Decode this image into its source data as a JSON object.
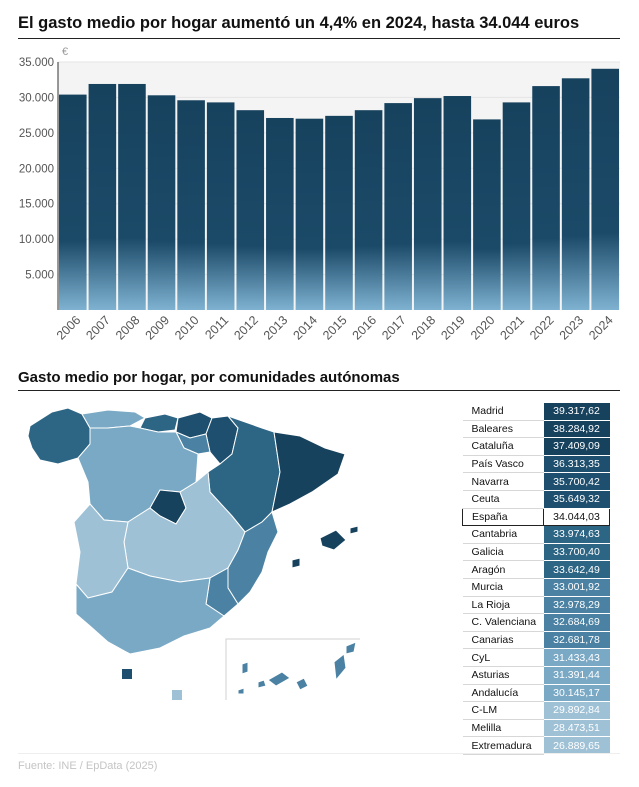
{
  "title": "El gasto medio por hogar aumentó un 4,4% en 2024, hasta 34.044 euros",
  "subtitle": "Gasto medio por hogar, por comunidades autónomas",
  "source": "Fuente: INE / EpData (2025)",
  "colors": {
    "bar_top": "#17425e",
    "bar_bottom": "#7fb2d1",
    "grid": "#e4e4e4",
    "plot_bg": "#f4f4f4",
    "scale": [
      "#17425e",
      "#1f4f6e",
      "#2d6584",
      "#4b82a3",
      "#7aa9c5",
      "#9fc1d6"
    ]
  },
  "chart_data": {
    "type": "bar",
    "title": "El gasto medio por hogar aumentó un 4,4% en 2024, hasta 34.044 euros",
    "ylabel": "€",
    "xlabel": "",
    "ylim": [
      0,
      35000
    ],
    "yticks": [
      5000,
      10000,
      15000,
      20000,
      25000,
      30000,
      35000
    ],
    "ytick_labels": [
      "5.000",
      "10.000",
      "15.000",
      "20.000",
      "25.000",
      "30.000",
      "35.000"
    ],
    "categories": [
      "2006",
      "2007",
      "2008",
      "2009",
      "2010",
      "2011",
      "2012",
      "2013",
      "2014",
      "2015",
      "2016",
      "2017",
      "2018",
      "2019",
      "2020",
      "2021",
      "2022",
      "2023",
      "2024"
    ],
    "values": [
      30400,
      31900,
      31900,
      30300,
      29600,
      29300,
      28200,
      27100,
      27000,
      27400,
      28200,
      29200,
      29900,
      30200,
      26900,
      29300,
      31600,
      32700,
      34044
    ],
    "grid": true
  },
  "regions_table": [
    {
      "name": "Madrid",
      "value": "39.317,62",
      "level": 0
    },
    {
      "name": "Baleares",
      "value": "38.284,92",
      "level": 0
    },
    {
      "name": "Cataluña",
      "value": "37.409,09",
      "level": 0
    },
    {
      "name": "País Vasco",
      "value": "36.313,35",
      "level": 1
    },
    {
      "name": "Navarra",
      "value": "35.700,42",
      "level": 1
    },
    {
      "name": "Ceuta",
      "value": "35.649,32",
      "level": 1
    },
    {
      "name": "España",
      "value": "34.044,03",
      "level": 2,
      "highlight": true
    },
    {
      "name": "Cantabria",
      "value": "33.974,63",
      "level": 2
    },
    {
      "name": "Galicia",
      "value": "33.700,40",
      "level": 2
    },
    {
      "name": "Aragón",
      "value": "33.642,49",
      "level": 2
    },
    {
      "name": "Murcia",
      "value": "33.001,92",
      "level": 3
    },
    {
      "name": "La Rioja",
      "value": "32.978,29",
      "level": 3
    },
    {
      "name": "C. Valenciana",
      "value": "32.684,69",
      "level": 3
    },
    {
      "name": "Canarias",
      "value": "32.681,78",
      "level": 3
    },
    {
      "name": "CyL",
      "value": "31.433,43",
      "level": 4
    },
    {
      "name": "Asturias",
      "value": "31.391,44",
      "level": 4
    },
    {
      "name": "Andalucía",
      "value": "30.145,17",
      "level": 4
    },
    {
      "name": "C-LM",
      "value": "29.892,84",
      "level": 5
    },
    {
      "name": "Melilla",
      "value": "28.473,51",
      "level": 5
    },
    {
      "name": "Extremadura",
      "value": "26.889,65",
      "level": 5
    }
  ]
}
